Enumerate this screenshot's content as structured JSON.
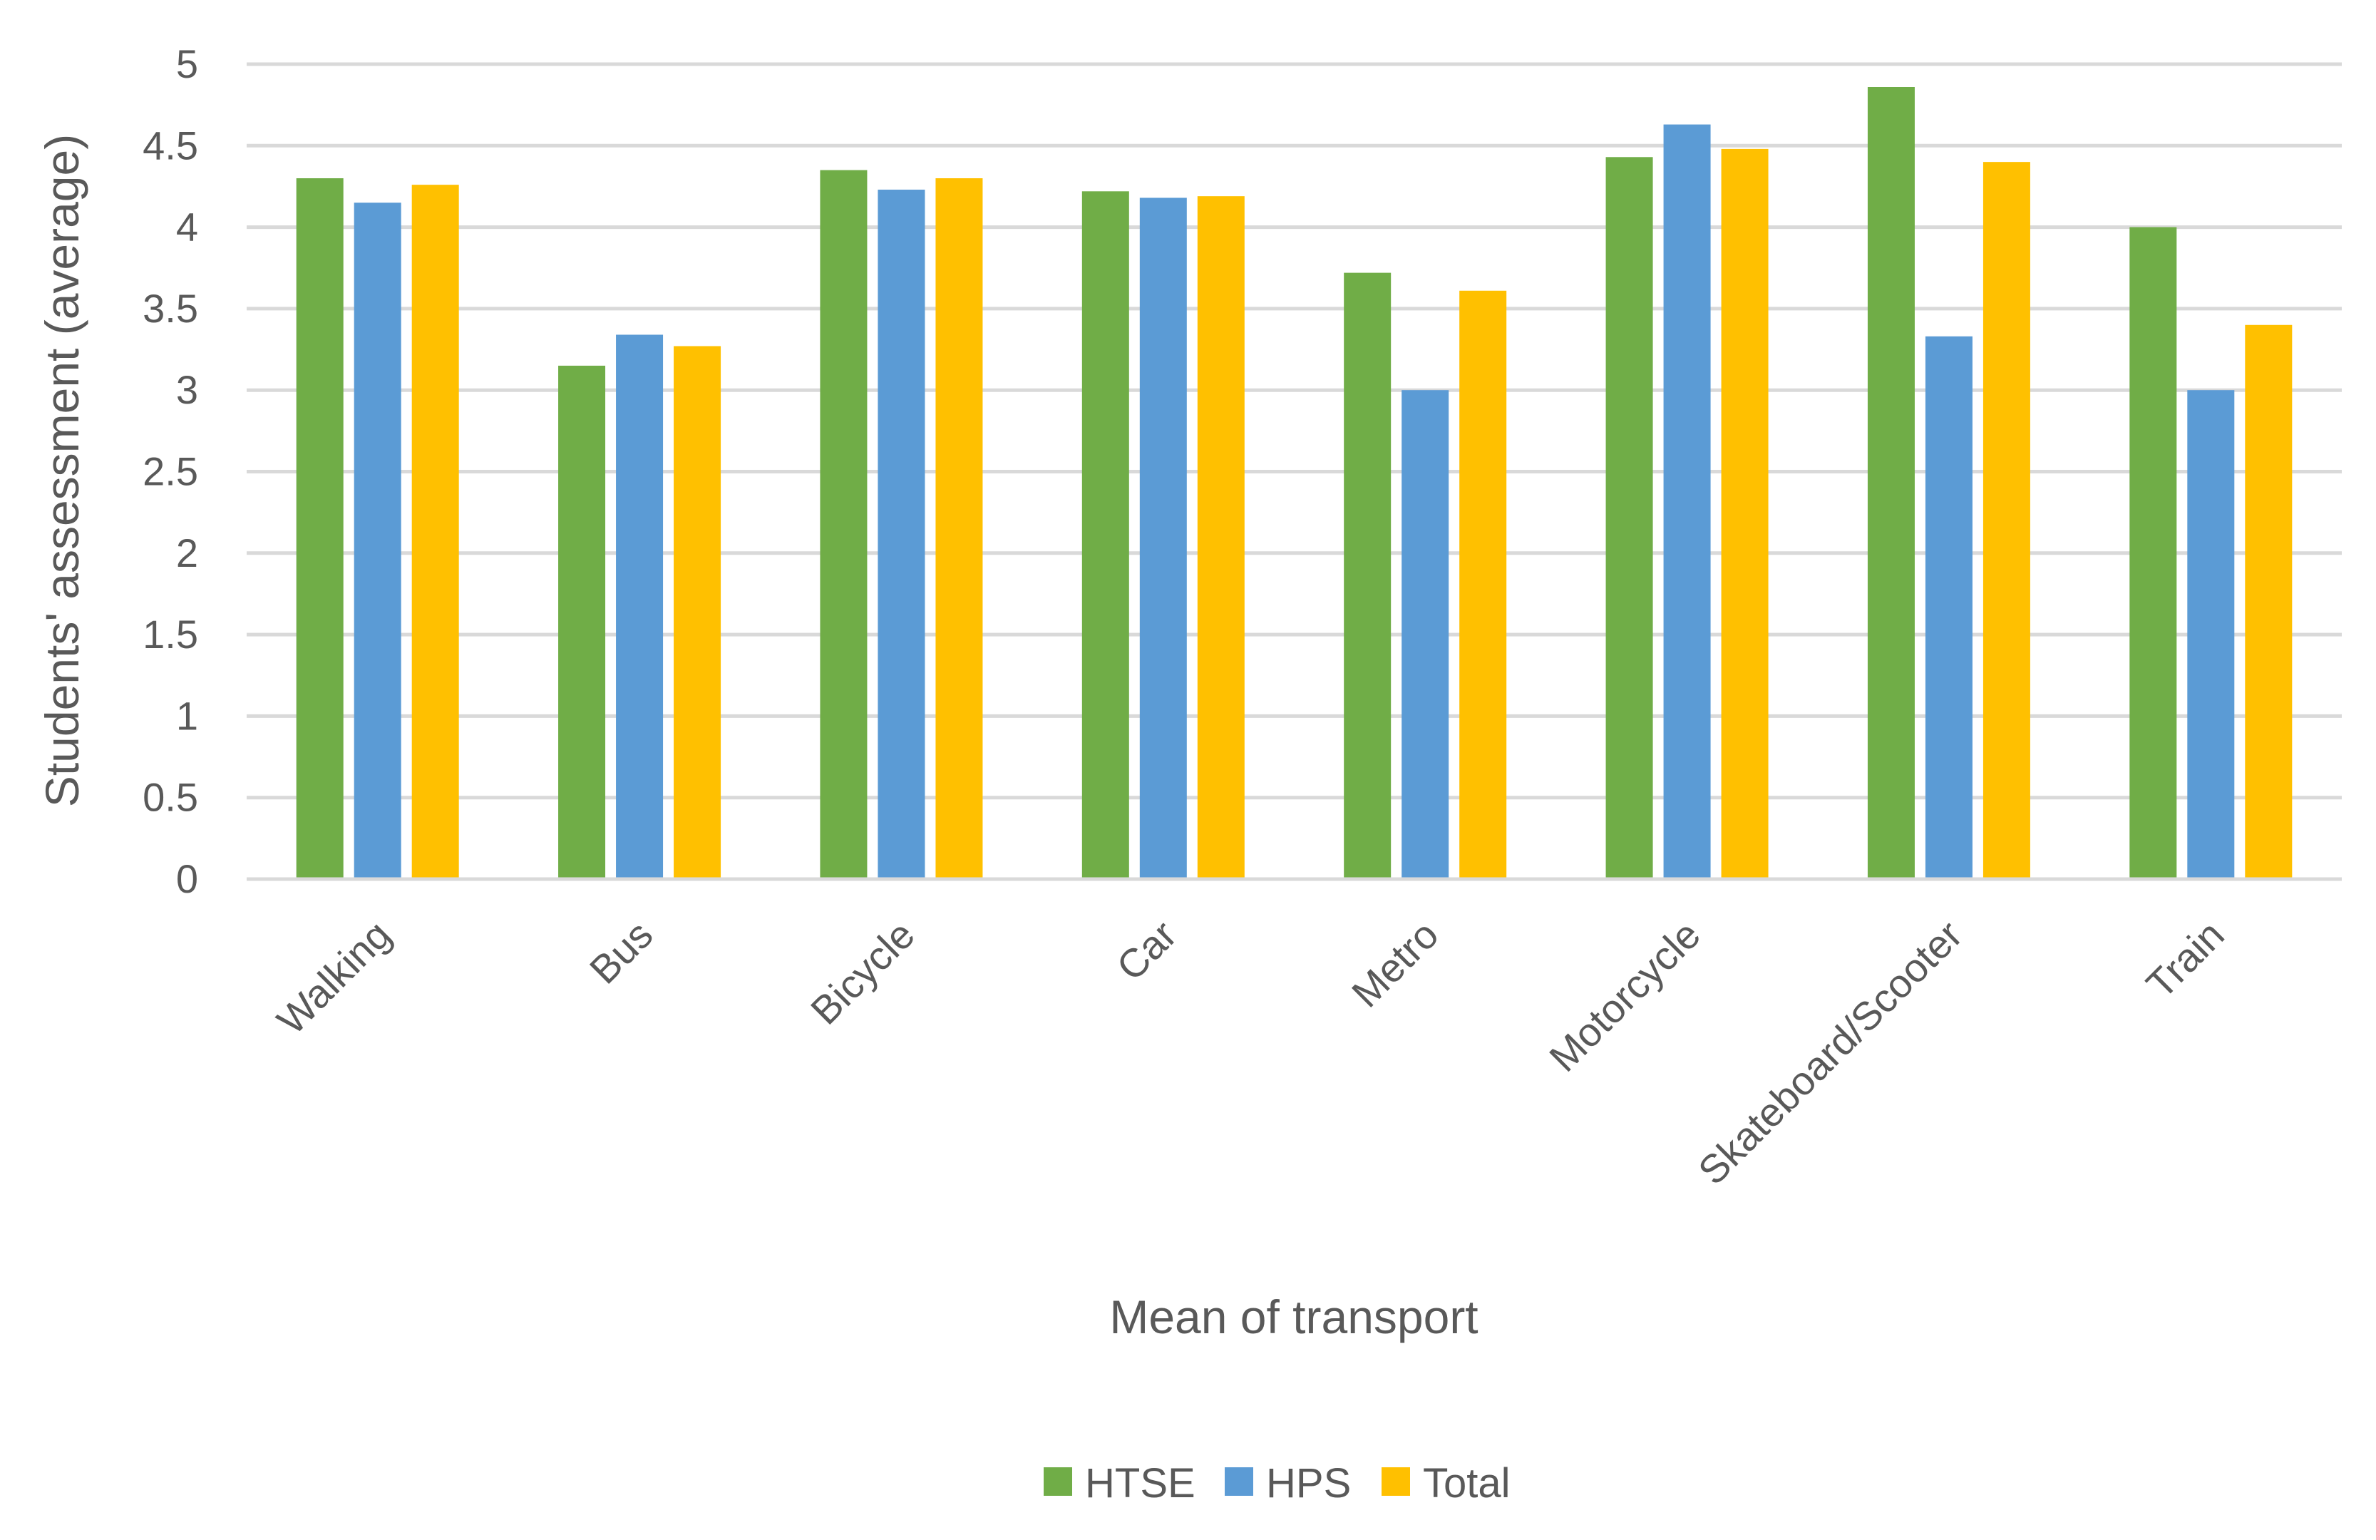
{
  "chart_data": {
    "type": "bar",
    "title": "",
    "xlabel": "Mean of transport",
    "ylabel": "Students' assessment (average)",
    "ylim": [
      0,
      5
    ],
    "yticks": [
      0,
      0.5,
      1,
      1.5,
      2,
      2.5,
      3,
      3.5,
      4,
      4.5,
      5
    ],
    "grid": true,
    "legend_position": "bottom",
    "categories": [
      "Walking",
      "Bus",
      "Bicycle",
      "Car",
      "Metro",
      "Motorcycle",
      "Skateboard/Scooter",
      "Train"
    ],
    "series": [
      {
        "name": "HTSE",
        "color": "#70AD47",
        "values": [
          4.3,
          3.15,
          4.35,
          4.22,
          3.72,
          4.43,
          4.86,
          4.0
        ]
      },
      {
        "name": "HPS",
        "color": "#5B9BD5",
        "values": [
          4.15,
          3.34,
          4.23,
          4.18,
          3.0,
          4.63,
          3.33,
          3.0
        ]
      },
      {
        "name": "Total",
        "color": "#FFC000",
        "values": [
          4.26,
          3.27,
          4.3,
          4.19,
          3.61,
          4.48,
          4.4,
          3.4
        ]
      }
    ]
  }
}
